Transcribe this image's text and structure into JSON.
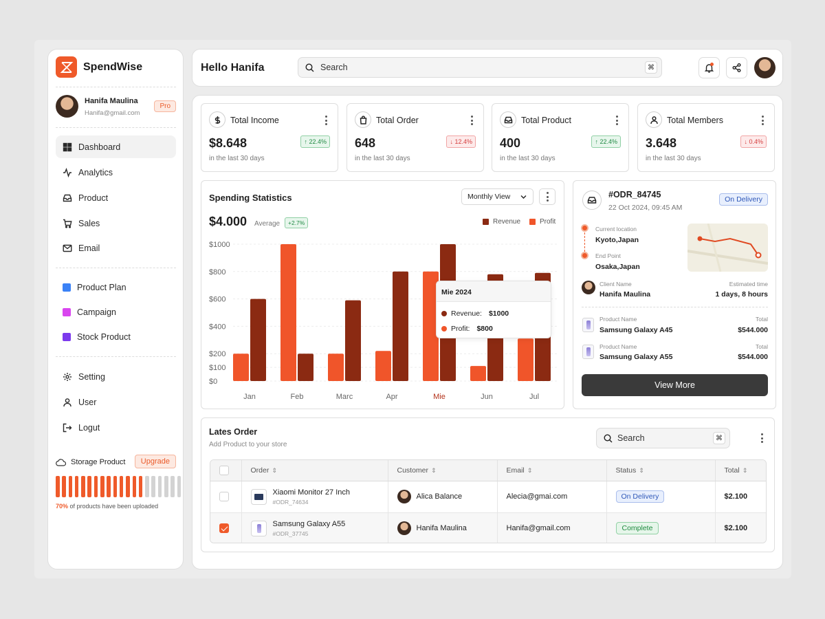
{
  "brand": {
    "name": "SpendWise",
    "accent": "#ef5a2a"
  },
  "user": {
    "name": "Hanifa Maulina",
    "email": "Hanifa@gmail.com",
    "plan": "Pro"
  },
  "nav": {
    "main": [
      {
        "label": "Dashboard",
        "icon": "grid-icon",
        "active": true
      },
      {
        "label": "Analytics",
        "icon": "activity-icon"
      },
      {
        "label": "Product",
        "icon": "inbox-icon"
      },
      {
        "label": "Sales",
        "icon": "cart-icon"
      },
      {
        "label": "Email",
        "icon": "mail-icon"
      }
    ],
    "projects": [
      {
        "label": "Product Plan",
        "color": "#3b82f6"
      },
      {
        "label": "Campaign",
        "color": "#d946ef"
      },
      {
        "label": "Stock Product",
        "color": "#7c3aed"
      }
    ],
    "bottom": [
      {
        "label": "Setting",
        "icon": "gear-icon"
      },
      {
        "label": "User",
        "icon": "user-icon"
      },
      {
        "label": "Logut",
        "icon": "logout-icon"
      }
    ]
  },
  "storage": {
    "label": "Storage Product",
    "button": "Upgrade",
    "percent": "70%",
    "note": "of products have been uploaded",
    "fill_fraction": 0.7
  },
  "header": {
    "greeting": "Hello Hanifa",
    "search_placeholder": "Search",
    "shortcut": "⌘"
  },
  "stats": [
    {
      "title": "Total Income",
      "value": "$8.648",
      "change": "↑ 22.4%",
      "trend": "up",
      "period": "in the last 30 days",
      "icon": "dollar-icon"
    },
    {
      "title": "Total Order",
      "value": "648",
      "change": "↓ 12.4%",
      "trend": "down",
      "period": "in the last 30 days",
      "icon": "bag-icon"
    },
    {
      "title": "Total Product",
      "value": "400",
      "change": "↑ 22.4%",
      "trend": "up",
      "period": "in the last 30 days",
      "icon": "inbox-icon"
    },
    {
      "title": "Total Members",
      "value": "3.648",
      "change": "↓ 0.4%",
      "trend": "down",
      "period": "in the last 30 days",
      "icon": "user-icon"
    }
  ],
  "spending": {
    "title": "Spending Statistics",
    "view": "Monthly View",
    "amount": "$4.000",
    "amount_label": "Average",
    "change": "+2.7%",
    "tooltip": {
      "title": "Mie 2024",
      "revenue_label": "Revenue:",
      "revenue": "$1000",
      "profit_label": "Profit:",
      "profit": "$800"
    }
  },
  "chart_data": {
    "type": "bar",
    "categories": [
      "Jan",
      "Feb",
      "Marc",
      "Apr",
      "Mie",
      "Jun",
      "Jul"
    ],
    "highlight": "Mie",
    "series": [
      {
        "name": "Profit",
        "color": "#f0552a",
        "values": [
          200,
          1000,
          200,
          220,
          800,
          110,
          310
        ]
      },
      {
        "name": "Revenue",
        "color": "#8b2a12",
        "values": [
          600,
          200,
          590,
          800,
          1000,
          780,
          790
        ]
      }
    ],
    "ylim": [
      0,
      1000
    ],
    "yticks": [
      "$0",
      "$100",
      "$200",
      "$400",
      "$600",
      "$800",
      "$1000"
    ],
    "ytick_values": [
      0,
      100,
      200,
      400,
      600,
      800,
      1000
    ],
    "legend": "top-right",
    "grid": true
  },
  "order_detail": {
    "id": "#ODR_84745",
    "date": "22 Oct 2024, 09:45 AM",
    "status": "On Delivery",
    "current_location_label": "Current location",
    "current_location": "Kyoto,Japan",
    "end_point_label": "End Point",
    "end_point": "Osaka,Japan",
    "client_label": "Client Name",
    "client": "Hanifa Maulina",
    "eta_label": "Estimated time",
    "eta": "1 days, 8 hours",
    "products": [
      {
        "label": "Product Name",
        "name": "Samsung Galaxy A45",
        "total_label": "Total",
        "total": "$544.000"
      },
      {
        "label": "Product Name",
        "name": "Samsung Galaxy A55",
        "total_label": "Total",
        "total": "$544.000"
      }
    ],
    "button": "View More"
  },
  "latest_orders": {
    "title": "Lates Order",
    "subtitle": "Add Product to your store",
    "search_placeholder": "Search",
    "columns": [
      "Order",
      "Customer",
      "Email",
      "Status",
      "Total"
    ],
    "rows": [
      {
        "product": "Xiaomi Monitor 27 Inch",
        "order_id": "#ODR_74634",
        "customer": "Alica Balance",
        "email": "Alecia@gmai.com",
        "status": "On Delivery",
        "total": "$2.100",
        "checked": false
      },
      {
        "product": "Samsung Galaxy A55",
        "order_id": "#ODR_37745",
        "customer": "Hanifa Maulina",
        "email": "Hanifa@gmail.com",
        "status": "Complete",
        "total": "$2.100",
        "checked": true
      }
    ]
  }
}
